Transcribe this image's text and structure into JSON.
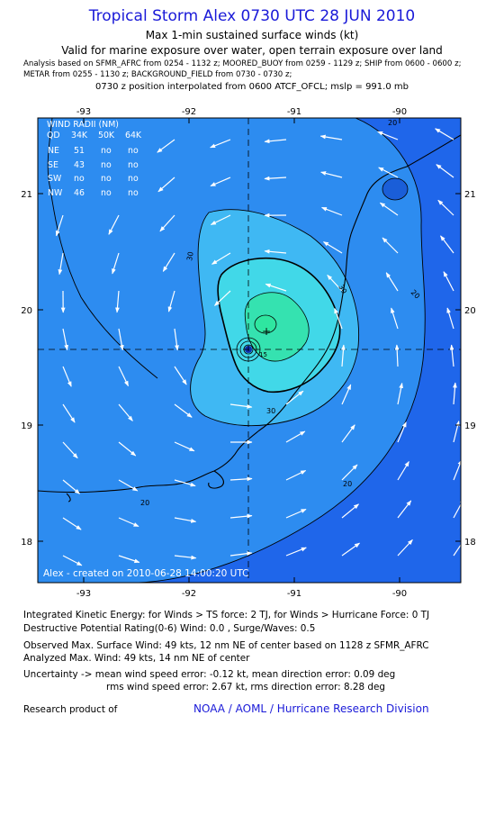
{
  "header": {
    "title": "Tropical Storm Alex 0730 UTC 28 JUN 2010",
    "subtitle": "Max 1-min sustained surface winds (kt)",
    "validity": "Valid for marine exposure over water, open terrain exposure over land",
    "analysis_line1": "Analysis based on  SFMR_AFRC from 0254 - 1132 z;  MOORED_BUOY from 0259 - 1129 z;  SHIP from 0600 - 0600 z;",
    "analysis_line2": "METAR from 0255 - 1130 z;  BACKGROUND_FIELD from 0730 - 0730 z;",
    "position_line": "0730 z position interpolated from 0600 ATCF_OFCL; mslp = 991.0 mb"
  },
  "map": {
    "lon_ticks": [
      "-93",
      "-92",
      "-91",
      "-90"
    ],
    "lat_ticks": [
      "21",
      "20",
      "19",
      "18"
    ],
    "contour_labels": [
      "20",
      "30",
      "30",
      "30",
      "20",
      "20",
      "20",
      "15"
    ],
    "center_mark": "+",
    "created_stamp": "Alex - created on 2010-06-28 14:00:20 UTC",
    "colors": {
      "ocean_deep": "#1f66ea",
      "band_20": "#2d8cf0",
      "band_30": "#3fb8f3",
      "band_40": "#41d8e8",
      "core": "#35e2b0",
      "eye": "#2fe6a0",
      "coast": "#000000"
    }
  },
  "wind_radii": {
    "title": "WIND RADII (NM)",
    "headers": [
      "QD",
      "34K",
      "50K",
      "64K"
    ],
    "rows": [
      [
        "NE",
        "51",
        "no",
        "no"
      ],
      [
        "SE",
        "43",
        "no",
        "no"
      ],
      [
        "SW",
        "no",
        "no",
        "no"
      ],
      [
        "NW",
        "46",
        "no",
        "no"
      ]
    ]
  },
  "footer": {
    "ike": "Integrated Kinetic Energy:  for Winds > TS force: 2 TJ,  for Winds > Hurricane Force: 0 TJ",
    "dpr": "Destructive Potential Rating(0-6)   Wind: 0.0 , Surge/Waves: 0.5",
    "obs_max": "Observed Max. Surface Wind: 49 kts, 12 nm NE of center based on 1128 z SFMR_AFRC",
    "ana_max": "Analyzed Max. Wind: 49 kts, 14 nm NE of center",
    "uncert1": "Uncertainty -> mean wind speed error:  -0.12 kt,   mean direction error: 0.09 deg",
    "uncert2": "rms wind speed error: 2.67 kt,   rms direction error: 8.28 deg",
    "research": "Research product of",
    "credit": "NOAA / AOML / Hurricane Research Division"
  }
}
